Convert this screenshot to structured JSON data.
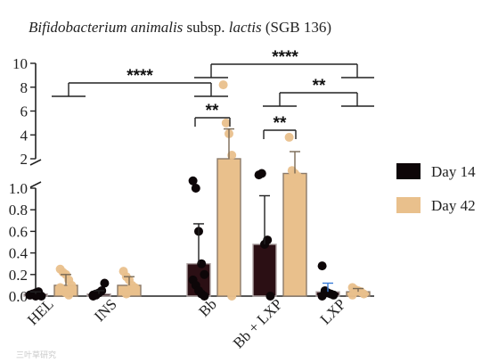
{
  "chart_data": {
    "type": "bar",
    "title": {
      "italic_1": "Bifidobacterium animalis",
      "plain": " subsp. ",
      "italic_2": "lactis",
      "suffix": "  (SGB 136)"
    },
    "categories": [
      "HEL",
      "INS",
      "Bb",
      "Bb + LXP",
      "LXP"
    ],
    "ylim_lower": [
      0,
      1.0
    ],
    "ylim_upper": [
      2,
      10
    ],
    "yticks_lower": [
      "0.0",
      "0.2",
      "0.4",
      "0.6",
      "0.8",
      "1.0"
    ],
    "yticks_upper": [
      "2",
      "4",
      "6",
      "8",
      "10"
    ],
    "ytick_values_lower": [
      0,
      0.2,
      0.4,
      0.6,
      0.8,
      1.0
    ],
    "ytick_values_upper": [
      2,
      4,
      6,
      8,
      10
    ],
    "series": [
      {
        "name": "Day 14",
        "color": "#0d0608",
        "values": [
          0.02,
          0.02,
          0.3,
          0.48,
          0.04
        ],
        "error": [
          0.02,
          0.03,
          0.37,
          0.45,
          0.08
        ],
        "points": [
          [
            0.01,
            0.02,
            0.03,
            0.04,
            0.0,
            0.01,
            0.02,
            0.0
          ],
          [
            0.01,
            0.02,
            0.03,
            0.05,
            0.12,
            0.0,
            0.01
          ],
          [
            1.25,
            1.0,
            0.6,
            0.3,
            0.2,
            0.15,
            0.1,
            0.05,
            0.02,
            0.0
          ],
          [
            1.45,
            1.5,
            0.48,
            0.52,
            0.0
          ],
          [
            0.28,
            0.05,
            0.03,
            0.02,
            0.01,
            0.0
          ]
        ]
      },
      {
        "name": "Day 42",
        "color": "#e9c08c",
        "values": [
          0.1,
          0.1,
          2.0,
          1.5,
          0.04
        ],
        "error": [
          0.1,
          0.08,
          2.5,
          1.1,
          0.03
        ],
        "points": [
          [
            0.25,
            0.22,
            0.2,
            0.15,
            0.1,
            0.08,
            0.05,
            0.03,
            0.01
          ],
          [
            0.23,
            0.18,
            0.15,
            0.1,
            0.08,
            0.05,
            0.02
          ],
          [
            8.2,
            5.0,
            4.1,
            2.3,
            1.8,
            1.3,
            1.0,
            0.95,
            0.0
          ],
          [
            3.8,
            1.6,
            1.5,
            1.4,
            1.3,
            1.0
          ],
          [
            0.08,
            0.06,
            0.05,
            0.04,
            0.02,
            0.01
          ]
        ]
      }
    ],
    "legend_position": "right",
    "significance": [
      {
        "label": "****",
        "from": "HEL",
        "to": "Bb"
      },
      {
        "label": "**",
        "from": "Bb Day 14",
        "to": "Bb Day 42"
      },
      {
        "label": "****",
        "from": "Bb",
        "to": "LXP"
      },
      {
        "label": "**",
        "from": "Bb + LXP",
        "to": "LXP"
      },
      {
        "label": "**",
        "from": "Bb + LXP Day 14",
        "to": "Bb + LXP Day 42"
      }
    ]
  },
  "watermark": "三叶草研究"
}
